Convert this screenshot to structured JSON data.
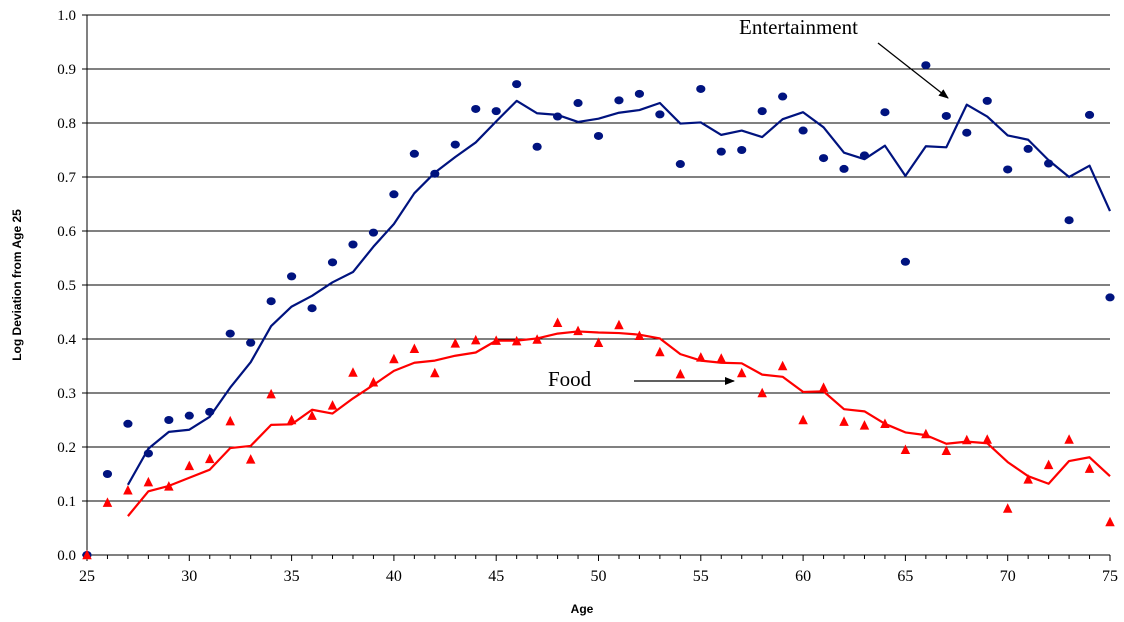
{
  "chart_data": {
    "type": "line",
    "title": "",
    "xlabel": "Age",
    "ylabel": "Log Deviation from Age 25",
    "xlim": [
      25,
      75
    ],
    "ylim": [
      0,
      1
    ],
    "x_ticks": [
      "25",
      "30",
      "35",
      "40",
      "45",
      "50",
      "55",
      "60",
      "65",
      "70",
      "75"
    ],
    "y_ticks": [
      "0.0",
      "0.1",
      "0.2",
      "0.3",
      "0.4",
      "0.5",
      "0.6",
      "0.7",
      "0.8",
      "0.9",
      "1.0"
    ],
    "grid": "horizontal",
    "legend": "none",
    "annotations": [
      {
        "text": "Entertainment",
        "arrow_to": [
          68,
          0.84
        ]
      },
      {
        "text": "Food",
        "arrow_to": [
          57,
          0.32
        ]
      }
    ],
    "series": [
      {
        "marker": "circle",
        "color": "#00137F",
        "x": [
          25,
          26,
          27,
          28,
          29,
          30,
          31,
          32,
          33,
          34,
          35,
          36,
          37,
          38,
          39,
          40,
          41,
          42,
          43,
          44,
          45,
          46,
          47,
          48,
          49,
          50,
          51,
          52,
          53,
          54,
          55,
          56,
          57,
          58,
          59,
          60,
          61,
          62,
          63,
          64,
          65,
          66,
          67,
          68,
          69,
          70,
          71,
          72,
          73,
          74,
          75
        ],
        "y": [
          0.0,
          0.15,
          0.243,
          0.188,
          0.25,
          0.258,
          0.265,
          0.41,
          0.393,
          0.47,
          0.516,
          0.457,
          0.542,
          0.575,
          0.597,
          0.668,
          0.743,
          0.706,
          0.76,
          0.826,
          0.822,
          0.872,
          0.756,
          0.812,
          0.837,
          0.776,
          0.842,
          0.854,
          0.816,
          0.724,
          0.863,
          0.747,
          0.75,
          0.822,
          0.849,
          0.786,
          0.735,
          0.715,
          0.74,
          0.82,
          0.543,
          0.907,
          0.813,
          0.782,
          0.841,
          0.714,
          0.752,
          0.725,
          0.62,
          0.815,
          0.477
        ],
        "smoothed": {
          "x": [
            27,
            28,
            29,
            30,
            31,
            32,
            33,
            34,
            35,
            36,
            37,
            38,
            39,
            40,
            41,
            42,
            43,
            44,
            45,
            46,
            47,
            48,
            49,
            50,
            51,
            52,
            53,
            54,
            55,
            56,
            57,
            58,
            59,
            60,
            61,
            62,
            63,
            64,
            65,
            66,
            67,
            68,
            69,
            70,
            71,
            72,
            73,
            74,
            75
          ],
          "y": [
            0.13,
            0.197,
            0.228,
            0.232,
            0.256,
            0.31,
            0.357,
            0.424,
            0.46,
            0.48,
            0.505,
            0.524,
            0.571,
            0.613,
            0.67,
            0.708,
            0.737,
            0.764,
            0.803,
            0.841,
            0.818,
            0.815,
            0.802,
            0.808,
            0.819,
            0.824,
            0.837,
            0.799,
            0.801,
            0.778,
            0.786,
            0.774,
            0.807,
            0.82,
            0.792,
            0.745,
            0.733,
            0.758,
            0.702,
            0.757,
            0.755,
            0.834,
            0.812,
            0.777,
            0.769,
            0.731,
            0.7,
            0.721,
            0.637
          ]
        }
      },
      {
        "marker": "triangle",
        "color": "#FF0000",
        "x": [
          25,
          26,
          27,
          28,
          29,
          30,
          31,
          32,
          33,
          34,
          35,
          36,
          37,
          38,
          39,
          40,
          41,
          42,
          43,
          44,
          45,
          46,
          47,
          48,
          49,
          50,
          51,
          52,
          53,
          54,
          55,
          56,
          57,
          58,
          59,
          60,
          61,
          62,
          63,
          64,
          65,
          66,
          67,
          68,
          69,
          70,
          71,
          72,
          73,
          74,
          75
        ],
        "y": [
          0.0,
          0.097,
          0.12,
          0.135,
          0.127,
          0.165,
          0.178,
          0.248,
          0.177,
          0.298,
          0.25,
          0.258,
          0.277,
          0.338,
          0.32,
          0.363,
          0.382,
          0.337,
          0.392,
          0.398,
          0.397,
          0.396,
          0.399,
          0.43,
          0.415,
          0.393,
          0.426,
          0.406,
          0.376,
          0.335,
          0.366,
          0.364,
          0.337,
          0.3,
          0.35,
          0.25,
          0.31,
          0.247,
          0.24,
          0.243,
          0.195,
          0.224,
          0.193,
          0.213,
          0.214,
          0.086,
          0.14,
          0.167,
          0.214,
          0.16,
          0.061
        ],
        "smoothed": {
          "x": [
            27,
            28,
            29,
            30,
            31,
            32,
            33,
            34,
            35,
            36,
            37,
            38,
            39,
            40,
            41,
            42,
            43,
            44,
            45,
            46,
            47,
            48,
            49,
            50,
            51,
            52,
            53,
            54,
            55,
            56,
            57,
            58,
            59,
            60,
            61,
            62,
            63,
            64,
            65,
            66,
            67,
            68,
            69,
            70,
            71,
            72,
            73,
            74,
            75
          ],
          "y": [
            0.072,
            0.118,
            0.128,
            0.143,
            0.158,
            0.198,
            0.202,
            0.241,
            0.242,
            0.269,
            0.262,
            0.29,
            0.315,
            0.341,
            0.356,
            0.36,
            0.369,
            0.375,
            0.397,
            0.397,
            0.401,
            0.41,
            0.414,
            0.412,
            0.411,
            0.408,
            0.401,
            0.372,
            0.36,
            0.356,
            0.355,
            0.334,
            0.33,
            0.302,
            0.303,
            0.27,
            0.266,
            0.243,
            0.227,
            0.222,
            0.206,
            0.21,
            0.207,
            0.172,
            0.146,
            0.132,
            0.174,
            0.181,
            0.146
          ]
        }
      }
    ]
  }
}
